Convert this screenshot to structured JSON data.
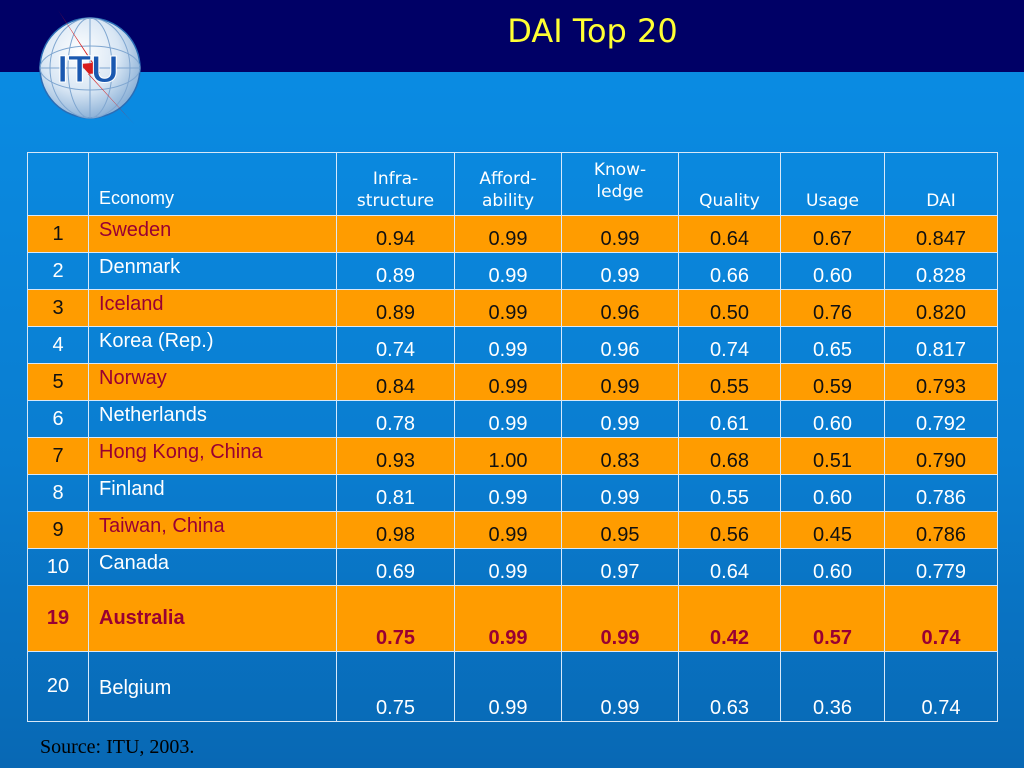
{
  "title": "DAI Top 20",
  "logo_text": "ITU",
  "table": {
    "headers": {
      "rank": "",
      "economy": "Economy",
      "infra_1": "Infra-",
      "infra_2": "structure",
      "afford_1": "Afford-",
      "afford_2": "ability",
      "know_1": "Know-",
      "know_2": "ledge",
      "quality": "Quality",
      "usage": "Usage",
      "dai": "DAI"
    },
    "rows": [
      {
        "rank": "1",
        "economy": "Sweden",
        "infra": "0.94",
        "afford": "0.99",
        "know": "0.99",
        "quality": "0.64",
        "usage": "0.67",
        "dai": "0.847"
      },
      {
        "rank": "2",
        "economy": "Denmark",
        "infra": "0.89",
        "afford": "0.99",
        "know": "0.99",
        "quality": "0.66",
        "usage": "0.60",
        "dai": "0.828"
      },
      {
        "rank": "3",
        "economy": "Iceland",
        "infra": "0.89",
        "afford": "0.99",
        "know": "0.96",
        "quality": "0.50",
        "usage": "0.76",
        "dai": "0.820"
      },
      {
        "rank": "4",
        "economy": "Korea (Rep.)",
        "infra": "0.74",
        "afford": "0.99",
        "know": "0.96",
        "quality": "0.74",
        "usage": "0.65",
        "dai": "0.817"
      },
      {
        "rank": "5",
        "economy": "Norway",
        "infra": "0.84",
        "afford": "0.99",
        "know": "0.99",
        "quality": "0.55",
        "usage": "0.59",
        "dai": "0.793"
      },
      {
        "rank": "6",
        "economy": "Netherlands",
        "infra": "0.78",
        "afford": "0.99",
        "know": "0.99",
        "quality": "0.61",
        "usage": "0.60",
        "dai": "0.792"
      },
      {
        "rank": "7",
        "economy": "Hong Kong, China",
        "infra": "0.93",
        "afford": "1.00",
        "know": "0.83",
        "quality": "0.68",
        "usage": "0.51",
        "dai": "0.790"
      },
      {
        "rank": "8",
        "economy": "Finland",
        "infra": "0.81",
        "afford": "0.99",
        "know": "0.99",
        "quality": "0.55",
        "usage": "0.60",
        "dai": "0.786"
      },
      {
        "rank": "9",
        "economy": "Taiwan, China",
        "infra": "0.98",
        "afford": "0.99",
        "know": "0.95",
        "quality": "0.56",
        "usage": "0.45",
        "dai": "0.786"
      },
      {
        "rank": "10",
        "economy": "Canada",
        "infra": "0.69",
        "afford": "0.99",
        "know": "0.97",
        "quality": "0.64",
        "usage": "0.60",
        "dai": "0.779"
      },
      {
        "rank": "19",
        "economy": "Australia",
        "infra": "0.75",
        "afford": "0.99",
        "know": "0.99",
        "quality": "0.42",
        "usage": "0.57",
        "dai": "0.74"
      },
      {
        "rank": "20",
        "economy": "Belgium",
        "infra": "0.75",
        "afford": "0.99",
        "know": "0.99",
        "quality": "0.63",
        "usage": "0.36",
        "dai": "0.74"
      }
    ]
  },
  "source": "Source: ITU, 2003.",
  "colors": {
    "title_bar": "#000066",
    "title_text": "#ffff33",
    "orange_row": "#ff9c00",
    "orange_text": "#990033",
    "background": "#0a8ee6"
  }
}
